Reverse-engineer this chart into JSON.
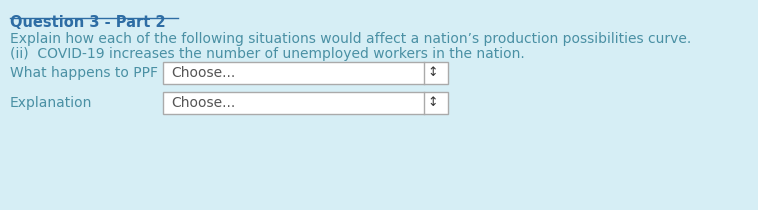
{
  "background_color": "#d6eef5",
  "title": "Question 3 - Part 2",
  "title_color": "#2e6da4",
  "title_fontsize": 10.5,
  "body_color": "#4a90a4",
  "body_fontsize": 10,
  "line1": "Explain how each of the following situations would affect a nation’s production possibilities curve.",
  "line2": "(ii)  COVID-19 increases the number of unemployed workers in the nation.",
  "label1": "What happens to PPF",
  "label2": "Explanation",
  "dropdown_text": "Choose...",
  "dropdown_bg": "#ffffff",
  "dropdown_border": "#aaaaaa",
  "arrow_color": "#333333",
  "label_color": "#4a90a4",
  "label_fontsize": 10,
  "dropdown_fontsize": 10,
  "dropdown_text_color": "#555555",
  "underline_color": "#2e6da4"
}
